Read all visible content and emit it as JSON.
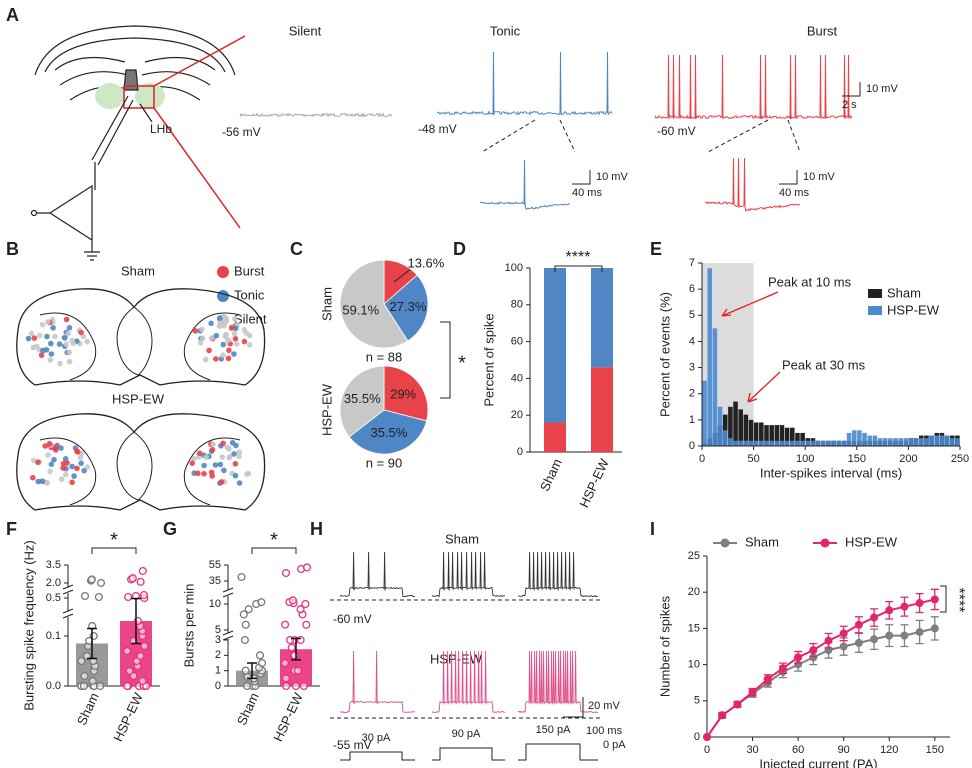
{
  "panel_labels": [
    "A",
    "B",
    "C",
    "D",
    "E",
    "F",
    "G",
    "H",
    "I"
  ],
  "panel_a": {
    "lhb": "LHb",
    "traces": [
      {
        "title": "Silent",
        "potential": "-56 mV"
      },
      {
        "title": "Tonic",
        "potential": "-48 mV"
      },
      {
        "title": "Burst",
        "potential": "-60 mV"
      }
    ],
    "scale_bars": [
      {
        "y": "10 mV",
        "x": "2 s"
      },
      {
        "y": "10 mV",
        "x": "40 ms"
      },
      {
        "y": "10 mV",
        "x": "40 ms"
      }
    ]
  },
  "panel_b": {
    "groups": [
      "Sham",
      "HSP-EW"
    ],
    "legend": [
      {
        "name": "Burst",
        "color": "#e8434a"
      },
      {
        "name": "Tonic",
        "color": "#4f86c6"
      },
      {
        "name": "Silent",
        "color": "#c8c8c8"
      }
    ]
  },
  "panel_h": {
    "groups": [
      {
        "name": "Sham",
        "potential": "-60 mV",
        "color": "#333333"
      },
      {
        "name": "HSP-EW",
        "potential": "-55 mV",
        "color": "#e0508a"
      }
    ],
    "scale_bars": {
      "y": "20 mV",
      "x": "100 ms"
    },
    "steps": [
      "30 pA",
      "90 pA",
      "150 pA"
    ],
    "baseline": "0 pA"
  },
  "chart_data": [
    {
      "type": "pie",
      "title": "Sham",
      "values": [
        13.6,
        27.3,
        59.1
      ],
      "value_labels": [
        "13.6%",
        "27.3%",
        "59.1%"
      ],
      "colors": [
        "#e8434a",
        "#4f86c6",
        "#c8c8c8"
      ],
      "note": "n = 88",
      "significance": "*"
    },
    {
      "type": "pie",
      "title": "HSP-EW",
      "values": [
        29,
        35.5,
        35.5
      ],
      "value_labels": [
        "29%",
        "35.5%",
        "35.5%"
      ],
      "colors": [
        "#e8434a",
        "#4f86c6",
        "#c8c8c8"
      ],
      "note": "n = 90"
    },
    {
      "type": "stacked_bar",
      "categories": [
        "Sham",
        "HSP-EW"
      ],
      "series": [
        {
          "color": "#e8434a",
          "values": [
            16,
            46
          ]
        },
        {
          "color": "#4f86c6",
          "values": [
            84,
            54
          ]
        }
      ],
      "ylim": [
        0,
        100
      ],
      "yticks": [
        0,
        20,
        40,
        60,
        80,
        100
      ],
      "ylabel": "Percent of spike",
      "significance": "****"
    },
    {
      "type": "histogram",
      "bins": [
        0,
        5,
        10,
        15,
        20,
        25,
        30,
        35,
        40,
        45,
        50,
        55,
        60,
        65,
        70,
        75,
        80,
        85,
        90,
        95,
        100,
        105,
        110,
        115,
        120,
        125,
        130,
        135,
        140,
        145,
        150,
        155,
        160,
        165,
        170,
        175,
        180,
        185,
        190,
        195,
        200,
        205,
        210,
        215,
        220,
        225,
        230,
        235,
        240,
        245,
        250
      ],
      "series": [
        {
          "name": "Sham",
          "color": "#222222",
          "values": [
            0.1,
            0.3,
            0.5,
            0.8,
            1.2,
            1.5,
            1.7,
            1.4,
            1.2,
            1.0,
            0.9,
            0.9,
            0.8,
            0.8,
            0.8,
            0.8,
            0.7,
            0.7,
            0.5,
            0.5,
            0.3,
            0.3,
            0.2,
            0.2,
            0.2,
            0.2,
            0.2,
            0.2,
            0.2,
            0.2,
            0.2,
            0.2,
            0.2,
            0.2,
            0.2,
            0.2,
            0.2,
            0.2,
            0.2,
            0.2,
            0.3,
            0.3,
            0.4,
            0.4,
            0.4,
            0.5,
            0.5,
            0.4,
            0.4,
            0.4
          ]
        },
        {
          "name": "HSP-EW",
          "color": "#4a8ad0",
          "values": [
            2.5,
            6.8,
            4.5,
            1.5,
            0.6,
            0.3,
            0.2,
            0.2,
            0.2,
            0.2,
            0.2,
            0.2,
            0.2,
            0.2,
            0.2,
            0.2,
            0.2,
            0.2,
            0.2,
            0.2,
            0.2,
            0.2,
            0.2,
            0.2,
            0.2,
            0.2,
            0.2,
            0.2,
            0.5,
            0.6,
            0.6,
            0.5,
            0.4,
            0.4,
            0.3,
            0.3,
            0.3,
            0.3,
            0.3,
            0.3,
            0.3,
            0.3,
            0.3,
            0.3,
            0.4,
            0.4,
            0.4,
            0.4,
            0.3,
            0.3
          ]
        }
      ],
      "xlim": [
        0,
        250
      ],
      "ylim": [
        0,
        7
      ],
      "xticks": [
        0,
        50,
        100,
        150,
        200,
        250
      ],
      "yticks": [
        0,
        1,
        2,
        3,
        4,
        5,
        6,
        7
      ],
      "shaded_range": [
        0,
        50
      ],
      "xlabel": "Inter-spikes interval (ms)",
      "ylabel": "Percent of events (%)",
      "annotations": [
        "Peak at 10 ms",
        "Peak at 30 ms"
      ]
    },
    {
      "type": "bar_scatter",
      "categories": [
        "Sham",
        "HSP-EW"
      ],
      "values": [
        0.085,
        0.13
      ],
      "errors": [
        0.03,
        0.045
      ],
      "colors": [
        "#8e8e8e",
        "#e8317b"
      ],
      "points": [
        [
          0,
          0,
          0,
          0,
          0,
          0,
          0,
          0.01,
          0.02,
          0.03,
          0.04,
          0.05,
          0.05,
          0.06,
          0.08,
          0.09,
          0.1,
          0.12,
          0.6,
          0.7,
          2.0,
          2.2,
          2.3
        ],
        [
          0,
          0,
          0,
          0,
          0,
          0,
          0.01,
          0.02,
          0.03,
          0.04,
          0.05,
          0.06,
          0.07,
          0.08,
          0.09,
          0.1,
          0.11,
          0.12,
          0.13,
          0.5,
          0.6,
          0.7,
          0.8,
          2.1,
          2.3,
          2.4,
          3.0
        ]
      ],
      "ylim": [
        0,
        3.5
      ],
      "yticks": [
        {
          "value": 0,
          "label": "0.0"
        },
        0.1,
        0.5,
        {
          "value": 2,
          "label": "2.0"
        },
        3.5
      ],
      "ylabel": "Bursting spike frequency (Hz)",
      "significance": "*"
    },
    {
      "type": "bar_scatter",
      "categories": [
        "Sham",
        "HSP-EW"
      ],
      "values": [
        1.0,
        2.4
      ],
      "errors": [
        0.5,
        0.7
      ],
      "colors": [
        "#8e8e8e",
        "#e8317b"
      ],
      "points": [
        [
          0,
          0,
          0,
          0.3,
          0.5,
          0.6,
          0.8,
          1,
          1,
          1.2,
          1.5,
          2,
          3,
          6,
          8,
          9,
          10,
          12,
          40
        ],
        [
          0,
          0,
          0,
          0.5,
          1,
          1,
          1.5,
          2,
          2,
          2.5,
          3,
          3,
          3,
          4,
          6,
          8,
          9,
          10,
          11,
          12,
          14,
          45,
          50,
          52
        ]
      ],
      "ylim": [
        0,
        55
      ],
      "yticks": [
        0,
        1,
        2,
        3,
        5,
        10,
        35,
        55
      ],
      "ylabel": "Bursts per min",
      "significance": "*"
    },
    {
      "type": "line",
      "x": [
        0,
        10,
        20,
        30,
        40,
        50,
        60,
        70,
        80,
        90,
        100,
        110,
        120,
        130,
        140,
        150
      ],
      "series": [
        {
          "name": "Sham",
          "color": "#7f7f7f",
          "values": [
            0,
            3,
            4.5,
            6,
            7.5,
            9,
            10,
            11,
            12,
            12.5,
            13,
            13.5,
            14,
            14,
            14.5,
            15
          ],
          "errors": [
            0,
            0.4,
            0.4,
            0.5,
            0.6,
            0.8,
            0.9,
            1,
            1.1,
            1.2,
            1.3,
            1.4,
            1.5,
            1.5,
            1.6,
            1.6
          ]
        },
        {
          "name": "HSP-EW",
          "color": "#e5246e",
          "values": [
            0,
            3,
            4.5,
            6.2,
            8,
            9.5,
            11,
            12,
            13.3,
            14.3,
            15.5,
            16.5,
            17.5,
            18,
            18.5,
            19
          ],
          "errors": [
            0,
            0.3,
            0.4,
            0.5,
            0.6,
            0.7,
            0.8,
            0.9,
            1,
            1,
            1.1,
            1.2,
            1.2,
            1.3,
            1.3,
            1.4
          ]
        }
      ],
      "xlim": [
        0,
        160
      ],
      "ylim": [
        0,
        25
      ],
      "xticks": [
        0,
        30,
        60,
        90,
        120,
        150
      ],
      "yticks": [
        0,
        5,
        10,
        15,
        20,
        25
      ],
      "xlabel": "Injected current (PA)",
      "ylabel": "Number of spikes",
      "significance": "****"
    }
  ]
}
